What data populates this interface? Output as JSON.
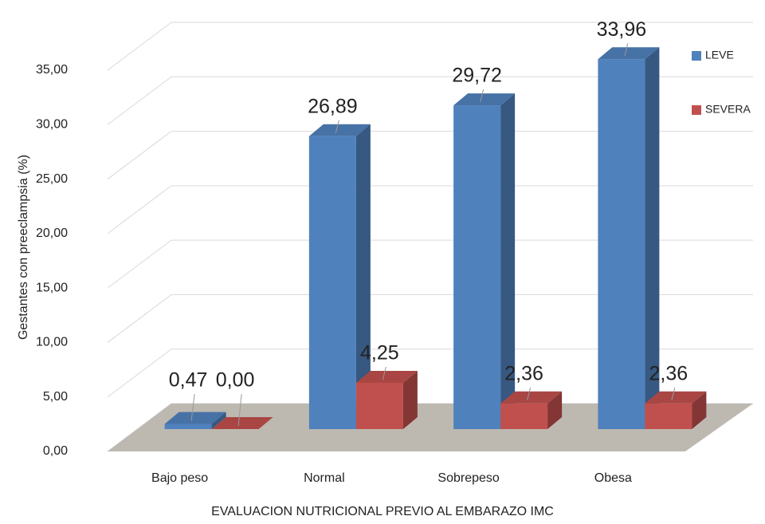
{
  "chart_data": {
    "type": "bar3d",
    "y_label": "Gestantes  con  preeclampsia (%)",
    "x_label": "EVALUACION NUTRICIONAL PREVIO AL EMBARAZO IMC",
    "categories": [
      "Bajo peso",
      "Normal",
      "Sobrepeso",
      "Obesa"
    ],
    "series": [
      {
        "name": "LEVE",
        "color": "#4f81bd",
        "values": [
          0.47,
          26.89,
          29.72,
          33.96
        ],
        "value_labels": [
          "0,47",
          "26,89",
          "29,72",
          "33,96"
        ]
      },
      {
        "name": "SEVERA",
        "color": "#c0504d",
        "values": [
          0.0,
          4.25,
          2.36,
          2.36
        ],
        "value_labels": [
          "0,00",
          "4,25",
          "2,36",
          "2,36"
        ]
      }
    ],
    "ylim": [
      0,
      35
    ],
    "yticks": [
      {
        "value": 0,
        "label": "0,00"
      },
      {
        "value": 5,
        "label": "5,00"
      },
      {
        "value": 10,
        "label": "10,00"
      },
      {
        "value": 15,
        "label": "15,00"
      },
      {
        "value": 20,
        "label": "20,00"
      },
      {
        "value": 25,
        "label": "25,00"
      },
      {
        "value": 30,
        "label": "30,00"
      },
      {
        "value": 35,
        "label": "35,00"
      }
    ],
    "grid": true,
    "legend": "right"
  }
}
